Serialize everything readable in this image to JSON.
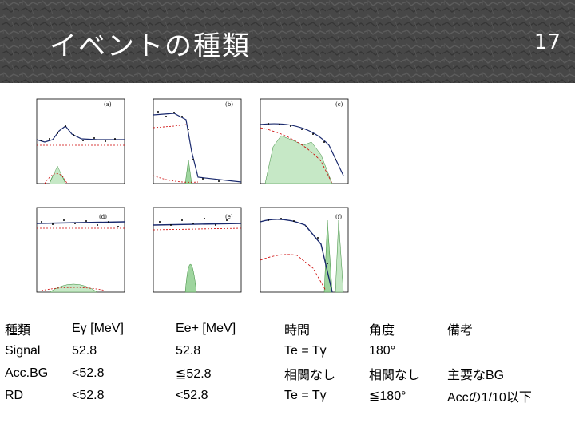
{
  "slide": {
    "title": "イベントの種類",
    "page_number": "17"
  },
  "figure": {
    "panels": [
      {
        "label": "(a)"
      },
      {
        "label": "(b)"
      },
      {
        "label": "(c)"
      },
      {
        "label": "(d)"
      },
      {
        "label": "(e)"
      },
      {
        "label": "(f)"
      }
    ]
  },
  "table": {
    "headers": [
      "種類",
      "Eγ [MeV]",
      "Ee+ [MeV]",
      "時間",
      "角度",
      "備考"
    ],
    "rows": [
      [
        "Signal",
        "52.8",
        "52.8",
        "Te = Tγ",
        "180°",
        ""
      ],
      [
        "Acc.BG",
        "<52.8",
        "≦52.8",
        "相関なし",
        "相関なし",
        "主要なBG"
      ],
      [
        "RD",
        "<52.8",
        "<52.8",
        "Te = Tγ",
        "≦180°",
        "Accの1/10以下"
      ]
    ]
  },
  "colors": {
    "header_bg": "#4a4a4a",
    "fit_line": "#1a2a6e",
    "background_curve": "#cc0000",
    "hist_fill": "#9fd59f"
  }
}
